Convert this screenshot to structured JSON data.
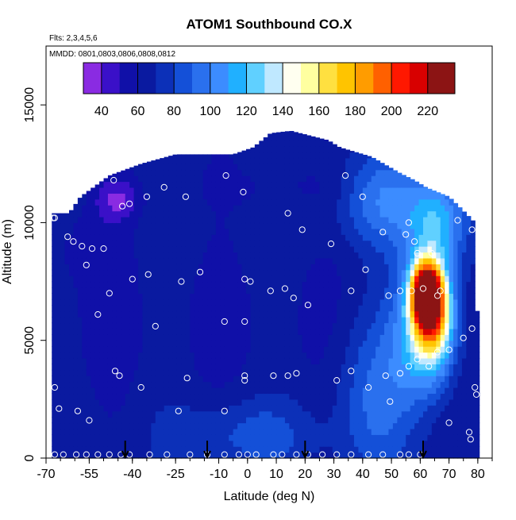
{
  "chart_data": {
    "type": "heatmap",
    "title": "ATOM1 Southbound CO.X",
    "subtitle_flights": "Flts: 2,3,4,5,6",
    "subtitle_dates": "MMDD: 0801,0803,0806,0808,0812",
    "xlabel": "Latitude (deg N)",
    "ylabel": "Altitude (m)",
    "xlim": [
      -70,
      85
    ],
    "ylim": [
      0,
      17500
    ],
    "x_ticks": [
      -70,
      -55,
      -40,
      -25,
      -10,
      0,
      10,
      20,
      30,
      40,
      50,
      60,
      70,
      80
    ],
    "y_ticks": [
      0,
      5000,
      10000,
      15000
    ],
    "colorbar": {
      "range": [
        30,
        235
      ],
      "ticks": [
        40,
        60,
        80,
        100,
        120,
        140,
        160,
        180,
        200,
        220
      ],
      "bounds": [
        30,
        40,
        50,
        60,
        70,
        80,
        90,
        100,
        110,
        120,
        130,
        140,
        150,
        160,
        170,
        180,
        190,
        200,
        210,
        220,
        235
      ],
      "colors": [
        "#8a2be2",
        "#3a10c8",
        "#1010a8",
        "#0a1aa0",
        "#0c30b8",
        "#1450d8",
        "#2a70ee",
        "#3c8cff",
        "#20b0ff",
        "#60d0ff",
        "#bfe8ff",
        "#fffff0",
        "#ffffa0",
        "#ffe040",
        "#ffc400",
        "#ff9c00",
        "#ff6000",
        "#ff1800",
        "#d80000",
        "#8c1414"
      ]
    },
    "arrow_latitudes": [
      -42.5,
      -14,
      20,
      61
    ],
    "field_background_value": 62,
    "features": [
      {
        "lat": 62,
        "alt": 7000,
        "value": 215,
        "sx": 5,
        "sy": 1300
      },
      {
        "lat": 65,
        "alt": 6000,
        "value": 160,
        "sx": 7,
        "sy": 2100
      },
      {
        "lat": 60,
        "alt": 5500,
        "value": 110,
        "sx": 10,
        "sy": 3000
      },
      {
        "lat": 66,
        "alt": 10000,
        "value": 110,
        "sx": 10,
        "sy": 2000
      },
      {
        "lat": 48,
        "alt": 11000,
        "value": 95,
        "sx": 16,
        "sy": 2000
      },
      {
        "lat": 45,
        "alt": 3000,
        "value": 90,
        "sx": 14,
        "sy": 3500
      },
      {
        "lat": 0,
        "alt": 1000,
        "value": 82,
        "sx": 25,
        "sy": 1500
      },
      {
        "lat": -45,
        "alt": 11000,
        "value": 38,
        "sx": 8,
        "sy": 900
      },
      {
        "lat": -55,
        "alt": 9000,
        "value": 52,
        "sx": 12,
        "sy": 1500
      },
      {
        "lat": 10,
        "alt": 11500,
        "value": 55,
        "sx": 30,
        "sy": 900
      }
    ],
    "data_profile": [
      [
        -68,
        10400
      ],
      [
        -62,
        10400
      ],
      [
        -58,
        11100
      ],
      [
        -48,
        12000
      ],
      [
        -37,
        12500
      ],
      [
        -25,
        12900
      ],
      [
        -5,
        12900
      ],
      [
        2,
        13200
      ],
      [
        8,
        13800
      ],
      [
        15,
        13900
      ],
      [
        28,
        13500
      ],
      [
        32,
        13200
      ],
      [
        43,
        12800
      ],
      [
        53,
        12100
      ],
      [
        58,
        11800
      ],
      [
        62,
        11500
      ],
      [
        70,
        11100
      ],
      [
        75,
        10500
      ],
      [
        79,
        10000
      ],
      [
        80,
        5000
      ],
      [
        80,
        0
      ]
    ],
    "sample_points": [
      [
        -67.5,
        10200
      ],
      [
        -67,
        10200
      ],
      [
        -62.5,
        9400
      ],
      [
        -60.5,
        9200
      ],
      [
        -57.5,
        9000
      ],
      [
        -54,
        8900
      ],
      [
        -50,
        8900
      ],
      [
        -56,
        8200
      ],
      [
        -46.5,
        11800
      ],
      [
        -43.5,
        10700
      ],
      [
        -41,
        10800
      ],
      [
        -35,
        11100
      ],
      [
        -29,
        11500
      ],
      [
        -21.5,
        11100
      ],
      [
        -7.5,
        12000
      ],
      [
        -1.5,
        11300
      ],
      [
        -48,
        7000
      ],
      [
        -40,
        7600
      ],
      [
        -34.5,
        7800
      ],
      [
        -23,
        7500
      ],
      [
        -16.5,
        7900
      ],
      [
        -52,
        6100
      ],
      [
        -32,
        5600
      ],
      [
        -8,
        5800
      ],
      [
        -1,
        5800
      ],
      [
        -1,
        7600
      ],
      [
        1,
        7500
      ],
      [
        8,
        7100
      ],
      [
        13,
        7200
      ],
      [
        16,
        6800
      ],
      [
        19,
        9700
      ],
      [
        14,
        10400
      ],
      [
        21,
        6500
      ],
      [
        29,
        9100
      ],
      [
        34,
        12000
      ],
      [
        40,
        11100
      ],
      [
        36,
        7100
      ],
      [
        41,
        8000
      ],
      [
        47,
        9600
      ],
      [
        49,
        6900
      ],
      [
        53,
        7100
      ],
      [
        57,
        7100
      ],
      [
        67,
        7100
      ],
      [
        61,
        7200
      ],
      [
        59,
        8700
      ],
      [
        58,
        9200
      ],
      [
        55,
        9500
      ],
      [
        56,
        10000
      ],
      [
        64,
        8700
      ],
      [
        66,
        6900
      ],
      [
        73,
        10100
      ],
      [
        78,
        9700
      ],
      [
        -67,
        3000
      ],
      [
        -65.5,
        2100
      ],
      [
        -59,
        2000
      ],
      [
        -55,
        1600
      ],
      [
        -46,
        3700
      ],
      [
        -44.5,
        3500
      ],
      [
        -37,
        3000
      ],
      [
        -21,
        3400
      ],
      [
        -24,
        2000
      ],
      [
        -8,
        2000
      ],
      [
        -1,
        3500
      ],
      [
        -1,
        3300
      ],
      [
        9,
        3500
      ],
      [
        14,
        3500
      ],
      [
        17,
        3600
      ],
      [
        31,
        3300
      ],
      [
        36,
        3700
      ],
      [
        42,
        3000
      ],
      [
        48,
        3500
      ],
      [
        49.5,
        2400
      ],
      [
        53,
        3600
      ],
      [
        56,
        3900
      ],
      [
        59,
        4200
      ],
      [
        63,
        3900
      ],
      [
        66,
        4500
      ],
      [
        70,
        4600
      ],
      [
        75,
        5100
      ],
      [
        78,
        5500
      ],
      [
        79,
        3000
      ],
      [
        79.5,
        2700
      ],
      [
        77,
        1100
      ],
      [
        77.5,
        800
      ],
      [
        70,
        1500
      ],
      [
        -67,
        150
      ],
      [
        -64,
        150
      ],
      [
        -59.5,
        150
      ],
      [
        -56,
        150
      ],
      [
        -52,
        150
      ],
      [
        -48,
        150
      ],
      [
        -44,
        150
      ],
      [
        -41,
        150
      ],
      [
        -34,
        150
      ],
      [
        -28,
        150
      ],
      [
        -20,
        150
      ],
      [
        -14,
        150
      ],
      [
        -8,
        150
      ],
      [
        -3,
        150
      ],
      [
        0,
        150
      ],
      [
        3,
        150
      ],
      [
        9,
        150
      ],
      [
        12,
        150
      ],
      [
        17,
        150
      ],
      [
        21,
        150
      ],
      [
        26,
        150
      ],
      [
        31,
        150
      ],
      [
        36,
        150
      ],
      [
        42,
        150
      ],
      [
        47,
        150
      ],
      [
        53,
        150
      ],
      [
        56,
        150
      ],
      [
        60,
        150
      ]
    ]
  }
}
